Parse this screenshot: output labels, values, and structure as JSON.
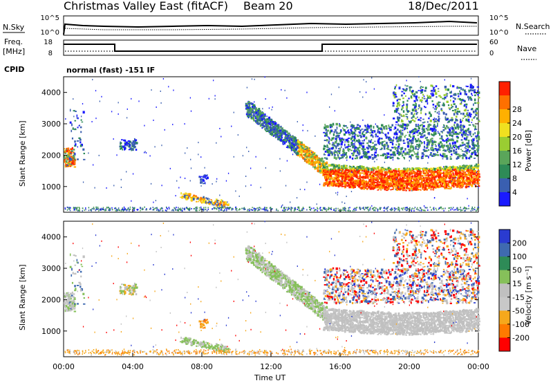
{
  "header": {
    "title": "Christmas Valley East (fitACF)",
    "beam": "Beam 20",
    "date": "18/Dec/2011"
  },
  "top_panels": {
    "nsky_label": "N.Sky",
    "nsearch_label": "N.Search",
    "nsky_ticks": [
      "10^5",
      "10^0"
    ],
    "nsearch_ticks": [
      "10^5",
      "10^0"
    ],
    "freq_label_1": "Freq.",
    "freq_label_2": "[MHz]",
    "freq_ticks": [
      "18",
      "8"
    ],
    "nave_label": "Nave",
    "nave_ticks": [
      "60",
      "0"
    ],
    "cpid_label": "CPID",
    "cpid_text": "normal (fast) -151 IF"
  },
  "colors": {
    "power_scale": [
      "#1a1aff",
      "#3a5fb0",
      "#2e8b57",
      "#5aa55a",
      "#9acd32",
      "#f0e020",
      "#ffb000",
      "#ff7000",
      "#ff2000"
    ],
    "velocity_scale": [
      "#2a3bd0",
      "#3f6ab0",
      "#2e8b57",
      "#86c05a",
      "#c0c0c0",
      "#c8c8c8",
      "#f6a81c",
      "#ff7a00",
      "#ff0000"
    ]
  },
  "chart_data": [
    {
      "type": "heatmap",
      "title": "Power",
      "ylabel": "Slant Range [km]",
      "xlabel": "",
      "colorbar_label": "Power [dB]",
      "colorbar_ticks": [
        "4",
        "8",
        "12",
        "16",
        "20",
        "24",
        "28"
      ],
      "xlim": [
        "00:00",
        "24:00"
      ],
      "ylim": [
        180,
        4500
      ],
      "y_ticks": [
        1000,
        2000,
        3000,
        4000
      ]
    },
    {
      "type": "heatmap",
      "title": "Velocity",
      "ylabel": "Slant Range [km]",
      "xlabel": "Time UT",
      "colorbar_label": "Velocity [m s⁻¹]",
      "colorbar_ticks": [
        "200",
        "100",
        "50",
        "15",
        "-15",
        "-50",
        "-100",
        "-200"
      ],
      "x_ticks": [
        "00:00",
        "04:00",
        "08:00",
        "12:00",
        "16:00",
        "20:00",
        "00:00"
      ],
      "xlim": [
        "00:00",
        "24:00"
      ],
      "ylim": [
        180,
        4500
      ],
      "y_ticks": [
        1000,
        2000,
        3000,
        4000
      ]
    }
  ]
}
